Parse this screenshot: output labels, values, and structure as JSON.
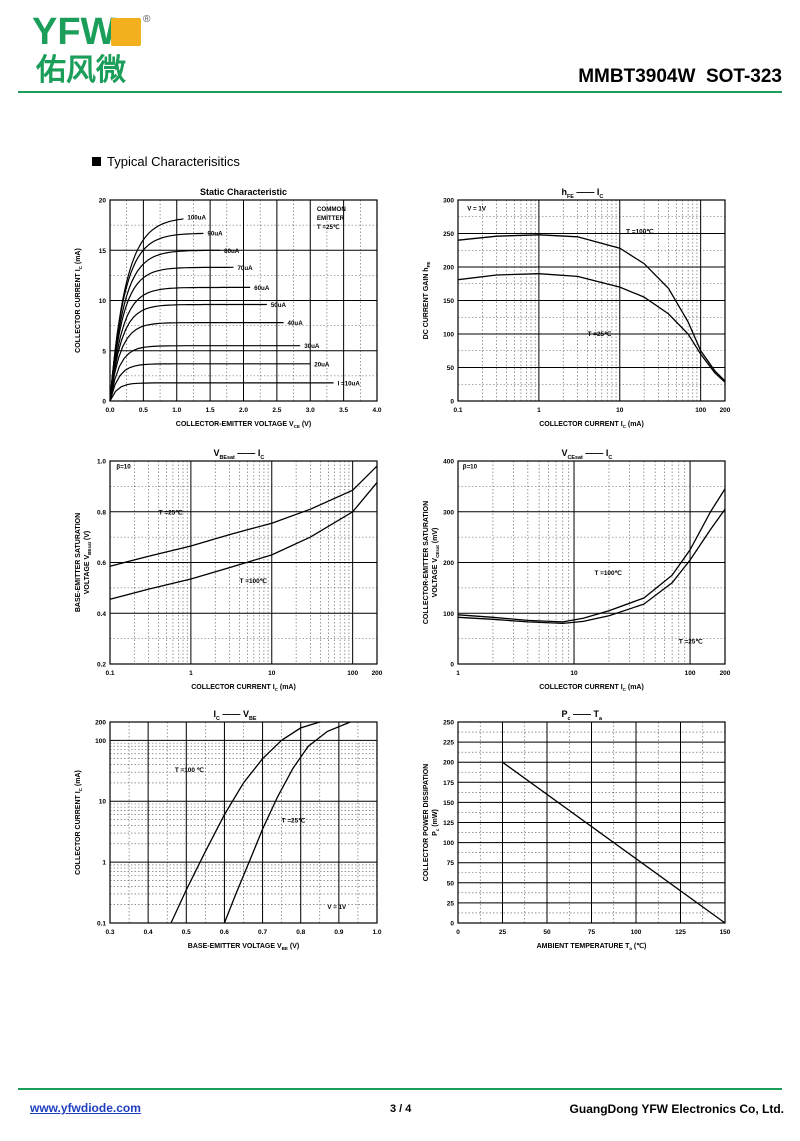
{
  "header": {
    "logo_latin": "YFW",
    "logo_cn": "佑风微",
    "logo_mark": "®",
    "model": "MMBT3904W  SOT-323"
  },
  "section_title": "Typical  Characterisitics",
  "footer": {
    "url": "www.yfwdiode.com",
    "page": "3 / 4",
    "company": "GuangDong YFW Electronics Co, Ltd."
  },
  "colors": {
    "brand_green": "#1a9e5a",
    "logo_yellow": "#f2b01e",
    "link_blue": "#1f3fbf"
  },
  "chart_data": [
    {
      "id": "static",
      "type": "line",
      "title": "Static Characteristic",
      "xlabel": "COLLECTOR-EMITTER VOLTAGE   V",
      "xlabel_sub": "CE",
      "xlabel_unit": "(V)",
      "ylabel": "COLLECTOR CURRENT   I",
      "ylabel_sub": "C",
      "ylabel_unit": "(mA)",
      "xscale": "linear",
      "yscale": "linear",
      "xlim": [
        0,
        4
      ],
      "ylim": [
        0,
        20
      ],
      "xticks": [
        0,
        0.5,
        1.0,
        1.5,
        2.0,
        2.5,
        3.0,
        3.5,
        4.0
      ],
      "xtick_labels": [
        "0.0",
        "0.5",
        "1.0",
        "1.5",
        "2.0",
        "2.5",
        "3.0",
        "3.5",
        "4.0"
      ],
      "yticks": [
        0,
        5,
        10,
        15,
        20
      ],
      "ytick_labels": [
        "0",
        "5",
        "10",
        "15",
        "20"
      ],
      "note_lines": [
        "COMMON",
        "EMITTER",
        "T =25℃"
      ],
      "curve_shape": "saturation",
      "series": [
        {
          "name": "100uA",
          "sat_i": 18.3,
          "sat_v": 0.55,
          "end_v": 1.1
        },
        {
          "name": "90uA",
          "sat_i": 16.7,
          "sat_v": 0.5,
          "end_v": 1.4
        },
        {
          "name": "80uA",
          "sat_i": 15.0,
          "sat_v": 0.48,
          "end_v": 1.65
        },
        {
          "name": "70uA",
          "sat_i": 13.3,
          "sat_v": 0.45,
          "end_v": 1.85
        },
        {
          "name": "60uA",
          "sat_i": 11.3,
          "sat_v": 0.43,
          "end_v": 2.1
        },
        {
          "name": "50uA",
          "sat_i": 9.6,
          "sat_v": 0.4,
          "end_v": 2.35
        },
        {
          "name": "40uA",
          "sat_i": 7.8,
          "sat_v": 0.37,
          "end_v": 2.6
        },
        {
          "name": "30uA",
          "sat_i": 5.5,
          "sat_v": 0.33,
          "end_v": 2.85
        },
        {
          "name": "20uA",
          "sat_i": 3.7,
          "sat_v": 0.3,
          "end_v": 3.0
        },
        {
          "name": "I =10uA",
          "sat_i": 1.8,
          "sat_v": 0.25,
          "end_v": 3.35
        }
      ]
    },
    {
      "id": "hfe",
      "type": "line",
      "title": "h",
      "title_sub": "FE",
      "title_rest": "I",
      "title_rest_sub": "C",
      "xlabel": "COLLECTOR CURRENT   I",
      "xlabel_sub": "C",
      "xlabel_unit": "(mA)",
      "ylabel": "DC CURRENT GAIN   h",
      "ylabel_sub": "FE",
      "ylabel_unit": "",
      "xscale": "log",
      "yscale": "linear",
      "xlim": [
        0.1,
        200
      ],
      "ylim": [
        0,
        300
      ],
      "xticks": [
        0.1,
        1,
        10,
        100,
        200
      ],
      "xtick_labels": [
        "0.1",
        "1",
        "10",
        "100",
        "200"
      ],
      "yticks": [
        0,
        50,
        100,
        150,
        200,
        250,
        300
      ],
      "ytick_labels": [
        "0",
        "50",
        "100",
        "150",
        "200",
        "250",
        "300"
      ],
      "note_lines": [
        "V  = 1V"
      ],
      "series": [
        {
          "name": "T =100℃",
          "x": [
            0.1,
            0.3,
            1,
            3,
            10,
            20,
            40,
            70,
            100,
            150,
            200
          ],
          "y": [
            240,
            246,
            248,
            245,
            228,
            205,
            168,
            118,
            75,
            45,
            30
          ]
        },
        {
          "name": "T =25℃",
          "x": [
            0.1,
            0.3,
            1,
            3,
            10,
            20,
            40,
            70,
            100,
            150,
            200
          ],
          "y": [
            181,
            188,
            190,
            186,
            170,
            155,
            130,
            100,
            70,
            42,
            28
          ]
        }
      ]
    },
    {
      "id": "vbesat",
      "type": "line",
      "title": "V",
      "title_sub": "BEsat",
      "title_rest": "I",
      "title_rest_sub": "C",
      "xlabel": "COLLECTOR CURRENT   I",
      "xlabel_sub": "C",
      "xlabel_unit": "(mA)",
      "ylabel": "BASE-EMITTER SATURATION",
      "ylabel2": "VOLTAGE   V",
      "ylabel_sub": "BEsat",
      "ylabel_unit": "(V)",
      "xscale": "log",
      "yscale": "linear",
      "xlim": [
        0.1,
        200
      ],
      "ylim": [
        0.2,
        1.0
      ],
      "xticks": [
        0.1,
        1,
        10,
        100,
        200
      ],
      "xtick_labels": [
        "0.1",
        "1",
        "10",
        "100",
        "200"
      ],
      "yticks": [
        0.2,
        0.4,
        0.6,
        0.8,
        1.0
      ],
      "ytick_labels": [
        "0.2",
        "0.4",
        "0.6",
        "0.8",
        "1.0"
      ],
      "note_lines": [
        "β=10"
      ],
      "series": [
        {
          "name": "T =25℃",
          "x": [
            0.1,
            0.3,
            1,
            3,
            10,
            30,
            100,
            200
          ],
          "y": [
            0.585,
            0.625,
            0.665,
            0.71,
            0.755,
            0.81,
            0.885,
            0.98
          ]
        },
        {
          "name": "T =100℃",
          "x": [
            0.1,
            0.3,
            1,
            3,
            10,
            30,
            100,
            200
          ],
          "y": [
            0.455,
            0.495,
            0.535,
            0.58,
            0.63,
            0.7,
            0.8,
            0.915
          ]
        }
      ]
    },
    {
      "id": "vcesat",
      "type": "line",
      "title": "V",
      "title_sub": "CEsat",
      "title_rest": "I",
      "title_rest_sub": "C",
      "xlabel": "COLLECTOR CURRENT   I",
      "xlabel_sub": "C",
      "xlabel_unit": "(mA)",
      "ylabel": "COLLECTOR-EMITTER SATURATION",
      "ylabel2": "VOLTAGE   V",
      "ylabel_sub": "CEsat",
      "ylabel_unit": "(mV)",
      "xscale": "log",
      "yscale": "linear",
      "xlim": [
        1,
        200
      ],
      "ylim": [
        0,
        400
      ],
      "xticks": [
        1,
        10,
        100,
        200
      ],
      "xtick_labels": [
        "1",
        "10",
        "100",
        "200"
      ],
      "yticks": [
        0,
        100,
        200,
        300,
        400
      ],
      "ytick_labels": [
        "0",
        "100",
        "200",
        "300",
        "400"
      ],
      "note_lines": [
        "β=10"
      ],
      "series": [
        {
          "name": "T =100℃",
          "x": [
            1,
            2,
            4,
            8,
            12,
            20,
            40,
            70,
            100,
            150,
            200
          ],
          "y": [
            97,
            92,
            86,
            83,
            90,
            105,
            130,
            175,
            225,
            300,
            345
          ]
        },
        {
          "name": "T =25℃",
          "x": [
            1,
            2,
            4,
            8,
            12,
            20,
            40,
            70,
            100,
            150,
            200
          ],
          "y": [
            92,
            88,
            83,
            80,
            84,
            95,
            118,
            160,
            205,
            265,
            305
          ]
        }
      ]
    },
    {
      "id": "icvbe",
      "type": "line",
      "title": "I",
      "title_sub": "C",
      "title_rest": "V",
      "title_rest_sub": "BE",
      "xlabel": "BASE-EMITTER VOLTAGE   V",
      "xlabel_sub": "BE",
      "xlabel_unit": "(V)",
      "ylabel": "COLLECTOR CURRENT   I",
      "ylabel_sub": "C",
      "ylabel_unit": "(mA)",
      "xscale": "linear",
      "yscale": "log",
      "xlim": [
        0.3,
        1.0
      ],
      "ylim": [
        0.1,
        200
      ],
      "xticks": [
        0.3,
        0.4,
        0.5,
        0.6,
        0.7,
        0.8,
        0.9,
        1.0
      ],
      "xtick_labels": [
        "0.3",
        "0.4",
        "0.5",
        "0.6",
        "0.7",
        "0.8",
        "0.9",
        "1.0"
      ],
      "yticks": [
        0.1,
        1,
        10,
        100,
        200
      ],
      "ytick_labels": [
        "0.1",
        "1",
        "10",
        "100",
        "200"
      ],
      "note_lines": [
        "V  = 1V"
      ],
      "series": [
        {
          "name": "T =100 ℃",
          "x": [
            0.46,
            0.5,
            0.55,
            0.6,
            0.65,
            0.7,
            0.75,
            0.8,
            0.85
          ],
          "y": [
            0.1,
            0.35,
            1.5,
            6,
            20,
            50,
            100,
            160,
            200
          ]
        },
        {
          "name": "T =25℃",
          "x": [
            0.6,
            0.63,
            0.67,
            0.7,
            0.74,
            0.78,
            0.82,
            0.87,
            0.93
          ],
          "y": [
            0.1,
            0.3,
            1.2,
            3.5,
            12,
            35,
            80,
            140,
            200
          ]
        }
      ]
    },
    {
      "id": "pcta",
      "type": "line",
      "title": "P",
      "title_sub": "c",
      "title_rest": "T",
      "title_rest_sub": "a",
      "xlabel": "AMBIENT TEMPERATURE   T",
      "xlabel_sub": "a",
      "xlabel_unit": "(℃)",
      "ylabel": "COLLECTOR POWER DISSIPATION",
      "ylabel2": "P",
      "ylabel_sub": "c",
      "ylabel_unit": "(mW)",
      "xscale": "linear",
      "yscale": "linear",
      "xlim": [
        0,
        150
      ],
      "ylim": [
        0,
        250
      ],
      "xticks": [
        0,
        25,
        50,
        75,
        100,
        125,
        150
      ],
      "xtick_labels": [
        "0",
        "25",
        "50",
        "75",
        "100",
        "125",
        "150"
      ],
      "yticks": [
        0,
        25,
        50,
        75,
        100,
        125,
        150,
        175,
        200,
        225,
        250
      ],
      "ytick_labels": [
        "0",
        "25",
        "50",
        "75",
        "100",
        "125",
        "150",
        "175",
        "200",
        "225",
        "250"
      ],
      "note_lines": [],
      "series": [
        {
          "name": "",
          "x": [
            25,
            150
          ],
          "y": [
            200,
            0
          ]
        }
      ]
    }
  ]
}
